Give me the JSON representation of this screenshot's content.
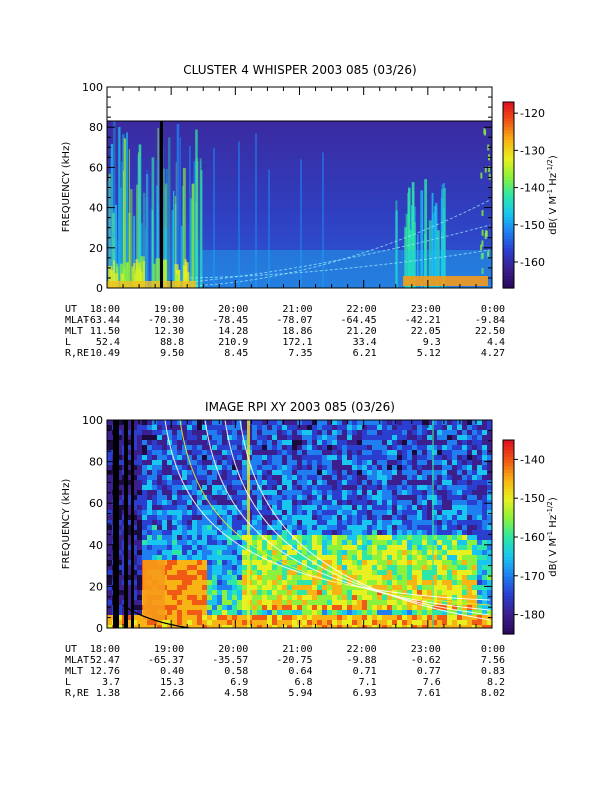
{
  "chart_data": [
    {
      "type": "heatmap",
      "title": "CLUSTER 4 WHISPER 2003 085 (03/26)",
      "ylabel": "FREQUENCY (kHz)",
      "ylim": [
        0,
        100
      ],
      "yticks": [
        "0",
        "20",
        "40",
        "60",
        "80",
        "100"
      ],
      "data_ceiling_khz": 80,
      "xlim": [
        "18:00",
        "0:00"
      ],
      "colorbar": {
        "label": "dB( V M",
        "label_sup1": "-1",
        "label_mid": " Hz",
        "label_sup2": "-1/2",
        "label_end": ")",
        "range": [
          -167,
          -117
        ],
        "ticks": [
          "-120",
          "-130",
          "-140",
          "-150",
          "-160"
        ],
        "colors": [
          "#2a0a5e",
          "#3b1f8f",
          "#2a3fd0",
          "#1f7ff0",
          "#19c6f0",
          "#2ee6a8",
          "#8af23c",
          "#e8f020",
          "#f8b414",
          "#f05a14",
          "#e0141e"
        ]
      },
      "annotation_rows": [
        {
          "label": "UT",
          "values": [
            "18:00",
            "19:00",
            "20:00",
            "21:00",
            "22:00",
            "23:00",
            "0:00"
          ]
        },
        {
          "label": "MLAT",
          "values": [
            "-63.44",
            "-70.30",
            "-78.45",
            "-78.07",
            "-64.45",
            "-42.21",
            "-9.84"
          ]
        },
        {
          "label": "MLT",
          "values": [
            "11.50",
            "12.30",
            "14.28",
            "18.86",
            "21.20",
            "22.05",
            "22.50"
          ]
        },
        {
          "label": "L",
          "values": [
            "52.4",
            "88.8",
            "210.9",
            "172.1",
            "33.4",
            "9.3",
            "4.4"
          ]
        },
        {
          "label": "R,RE",
          "values": [
            "10.49",
            "9.50",
            "8.45",
            "7.35",
            "6.21",
            "5.12",
            "4.27"
          ]
        }
      ]
    },
    {
      "type": "heatmap",
      "title": "IMAGE RPI XY 2003 085 (03/26)",
      "ylabel": "FREQUENCY (kHz)",
      "ylim": [
        0,
        100
      ],
      "yticks": [
        "0",
        "20",
        "40",
        "60",
        "80",
        "100"
      ],
      "xlim": [
        "18:00",
        "0:00"
      ],
      "colorbar": {
        "label": "dB( V M",
        "label_sup1": "-1",
        "label_mid": " Hz",
        "label_sup2": "-1/2",
        "label_end": ")",
        "range": [
          -185,
          -135
        ],
        "ticks": [
          "-140",
          "-150",
          "-160",
          "-170",
          "-180"
        ],
        "colors": [
          "#2a0a5e",
          "#3b1f8f",
          "#2a3fd0",
          "#1f7ff0",
          "#19c6f0",
          "#2ee6a8",
          "#8af23c",
          "#e8f020",
          "#f8b414",
          "#f05a14",
          "#e0141e"
        ]
      },
      "annotation_rows": [
        {
          "label": "UT",
          "values": [
            "18:00",
            "19:00",
            "20:00",
            "21:00",
            "22:00",
            "23:00",
            "0:00"
          ]
        },
        {
          "label": "MLAT",
          "values": [
            "52.47",
            "-65.37",
            "-35.57",
            "-20.75",
            "-9.88",
            "-0.62",
            "7.56"
          ]
        },
        {
          "label": "MLT",
          "values": [
            "12.76",
            "0.40",
            "0.58",
            "0.64",
            "0.71",
            "0.77",
            "0.83"
          ]
        },
        {
          "label": "L",
          "values": [
            "3.7",
            "15.3",
            "6.9",
            "6.8",
            "7.1",
            "7.6",
            "8.2"
          ]
        },
        {
          "label": "R,RE",
          "values": [
            "1.38",
            "2.66",
            "4.58",
            "5.94",
            "6.93",
            "7.61",
            "8.02"
          ]
        }
      ]
    }
  ]
}
